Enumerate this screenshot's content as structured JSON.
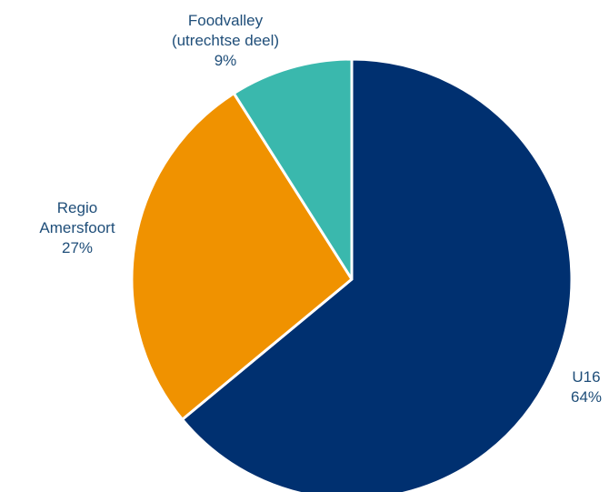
{
  "chart_data": {
    "type": "pie",
    "title": "",
    "slices": [
      {
        "label_lines": [
          "U16"
        ],
        "value": 64,
        "value_label": "64%",
        "color": "#003070"
      },
      {
        "label_lines": [
          "Regio",
          "Amersfoort"
        ],
        "value": 27,
        "value_label": "27%",
        "color": "#f09200"
      },
      {
        "label_lines": [
          "Foodvalley",
          "(utrechtse deel)"
        ],
        "value": 9,
        "value_label": "9%",
        "color": "#3ab8ad"
      }
    ],
    "legend": "none",
    "label_color": "#1f4e79"
  }
}
